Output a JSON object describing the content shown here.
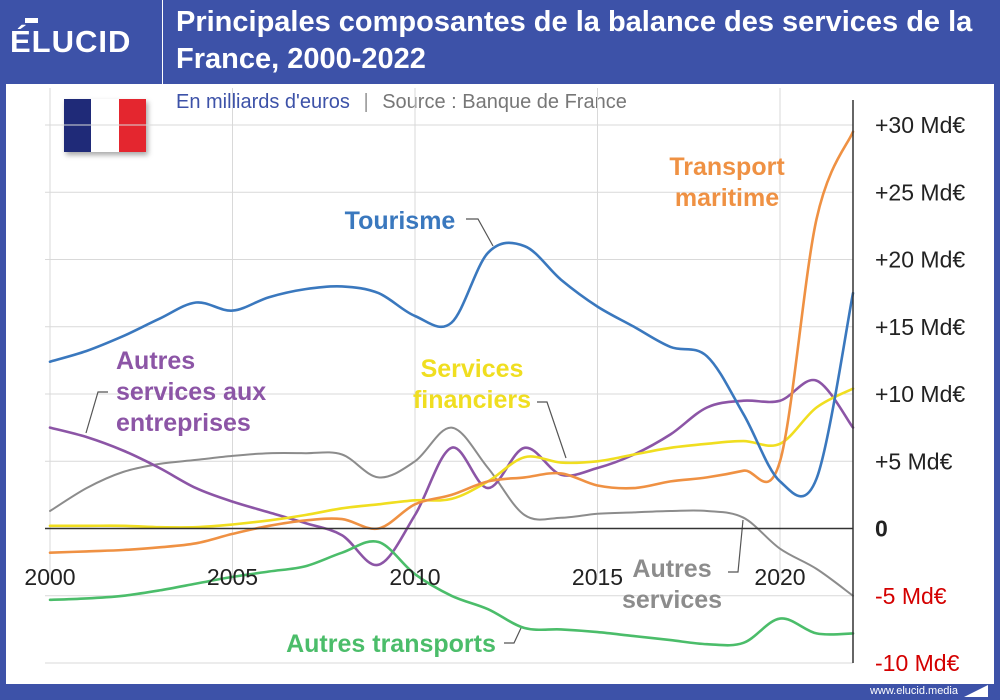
{
  "brand": {
    "logo": "ÉLUCID"
  },
  "title": "Principales composantes de la balance des services de la France, 2000-2022",
  "subtitle": {
    "unit": "En milliards d'euros",
    "separator": "|",
    "source": "Source : Banque de France"
  },
  "flag": {
    "name": "france-flag",
    "colors": [
      "#1f2a78",
      "#ffffff",
      "#e4262f"
    ]
  },
  "footer": {
    "url": "www.elucid.media"
  },
  "colors": {
    "frame": "#3d52a8",
    "grid": "#d9d9d9",
    "negative_tick": "#d40000",
    "axis": "#222222"
  },
  "chart_data": {
    "type": "line",
    "title": "Principales composantes de la balance des services de la France, 2000-2022",
    "xlim": [
      2000,
      2022
    ],
    "ylim": [
      -10,
      30
    ],
    "grid": true,
    "x_ticks": [
      {
        "value": 2000,
        "label": "2000"
      },
      {
        "value": 2005,
        "label": "2005"
      },
      {
        "value": 2010,
        "label": "2010"
      },
      {
        "value": 2015,
        "label": "2015"
      },
      {
        "value": 2020,
        "label": "2020"
      }
    ],
    "y_ticks": [
      {
        "value": 30,
        "label": "+30 Md€"
      },
      {
        "value": 25,
        "label": "+25 Md€"
      },
      {
        "value": 20,
        "label": "+20 Md€"
      },
      {
        "value": 15,
        "label": "+15 Md€"
      },
      {
        "value": 10,
        "label": "+10 Md€"
      },
      {
        "value": 5,
        "label": "+5 Md€"
      },
      {
        "value": 0,
        "label": "0"
      },
      {
        "value": -5,
        "label": "-5 Md€"
      },
      {
        "value": -10,
        "label": "-10 Md€"
      }
    ],
    "series": [
      {
        "name": "Tourisme",
        "label_lines": [
          "Tourisme"
        ],
        "color": "#3a78be",
        "x": [
          2000,
          2001,
          2002,
          2003,
          2004,
          2005,
          2006,
          2007,
          2008,
          2009,
          2010,
          2011,
          2012,
          2013,
          2014,
          2015,
          2016,
          2017,
          2018,
          2019,
          2020,
          2021,
          2022
        ],
        "y": [
          12.4,
          13.2,
          14.3,
          15.6,
          16.8,
          16.2,
          17.2,
          17.8,
          18.0,
          17.5,
          15.8,
          15.3,
          20.5,
          21.0,
          18.5,
          16.5,
          15.0,
          13.5,
          12.8,
          8.5,
          3.5,
          3.7,
          17.5
        ]
      },
      {
        "name": "Transport maritime",
        "label_lines": [
          "Transport",
          "maritime"
        ],
        "color": "#ef9143",
        "x": [
          2000,
          2001,
          2002,
          2003,
          2004,
          2005,
          2006,
          2007,
          2008,
          2009,
          2010,
          2011,
          2012,
          2013,
          2014,
          2015,
          2016,
          2017,
          2018,
          2019,
          2020,
          2021,
          2022
        ],
        "y": [
          -1.8,
          -1.7,
          -1.6,
          -1.4,
          -1.1,
          -0.4,
          0.2,
          0.6,
          0.7,
          0.0,
          1.8,
          2.5,
          3.5,
          3.8,
          4.1,
          3.2,
          3.0,
          3.5,
          3.8,
          4.3,
          5.0,
          23.0,
          29.5
        ]
      },
      {
        "name": "Services financiers",
        "label_lines": [
          "Services",
          "financiers"
        ],
        "color": "#f0de20",
        "x": [
          2000,
          2001,
          2002,
          2003,
          2004,
          2005,
          2006,
          2007,
          2008,
          2009,
          2010,
          2011,
          2012,
          2013,
          2014,
          2015,
          2016,
          2017,
          2018,
          2019,
          2020,
          2021,
          2022
        ],
        "y": [
          0.2,
          0.2,
          0.2,
          0.1,
          0.1,
          0.3,
          0.6,
          1.0,
          1.5,
          1.8,
          2.1,
          2.2,
          3.5,
          5.3,
          4.9,
          5.0,
          5.5,
          6.0,
          6.3,
          6.5,
          6.3,
          9.0,
          10.4
        ]
      },
      {
        "name": "Autres services aux entreprises",
        "label_lines": [
          "Autres",
          "services aux",
          "entreprises"
        ],
        "color": "#8c55a6",
        "x": [
          2000,
          2001,
          2002,
          2003,
          2004,
          2005,
          2006,
          2007,
          2008,
          2009,
          2010,
          2011,
          2012,
          2013,
          2014,
          2015,
          2016,
          2017,
          2018,
          2019,
          2020,
          2021,
          2022
        ],
        "y": [
          7.5,
          6.8,
          5.8,
          4.5,
          3.0,
          2.0,
          1.2,
          0.4,
          -0.5,
          -2.7,
          1.0,
          6.0,
          3.0,
          6.0,
          4.0,
          4.5,
          5.5,
          7.0,
          9.0,
          9.5,
          9.5,
          11.0,
          7.5
        ]
      },
      {
        "name": "Autres services",
        "label_lines": [
          "Autres",
          "services"
        ],
        "color": "#8c8c8c",
        "x": [
          2000,
          2001,
          2002,
          2003,
          2004,
          2005,
          2006,
          2007,
          2008,
          2009,
          2010,
          2011,
          2012,
          2013,
          2014,
          2015,
          2016,
          2017,
          2018,
          2019,
          2020,
          2021,
          2022
        ],
        "y": [
          1.3,
          3.0,
          4.2,
          4.8,
          5.1,
          5.4,
          5.6,
          5.6,
          5.5,
          3.8,
          5.0,
          7.5,
          4.5,
          1.0,
          0.8,
          1.1,
          1.2,
          1.3,
          1.3,
          0.8,
          -1.5,
          -3.0,
          -5.0
        ]
      },
      {
        "name": "Autres transports",
        "label_lines": [
          "Autres transports"
        ],
        "color": "#4bbd6a",
        "x": [
          2000,
          2001,
          2002,
          2003,
          2004,
          2005,
          2006,
          2007,
          2008,
          2009,
          2010,
          2011,
          2012,
          2013,
          2014,
          2015,
          2016,
          2017,
          2018,
          2019,
          2020,
          2021,
          2022
        ],
        "y": [
          -5.3,
          -5.2,
          -5.0,
          -4.6,
          -4.1,
          -3.6,
          -3.2,
          -2.8,
          -1.8,
          -1.0,
          -3.4,
          -5.0,
          -6.0,
          -7.4,
          -7.5,
          -7.7,
          -8.0,
          -8.3,
          -8.6,
          -8.5,
          -6.7,
          -7.8,
          -7.8
        ]
      }
    ]
  }
}
